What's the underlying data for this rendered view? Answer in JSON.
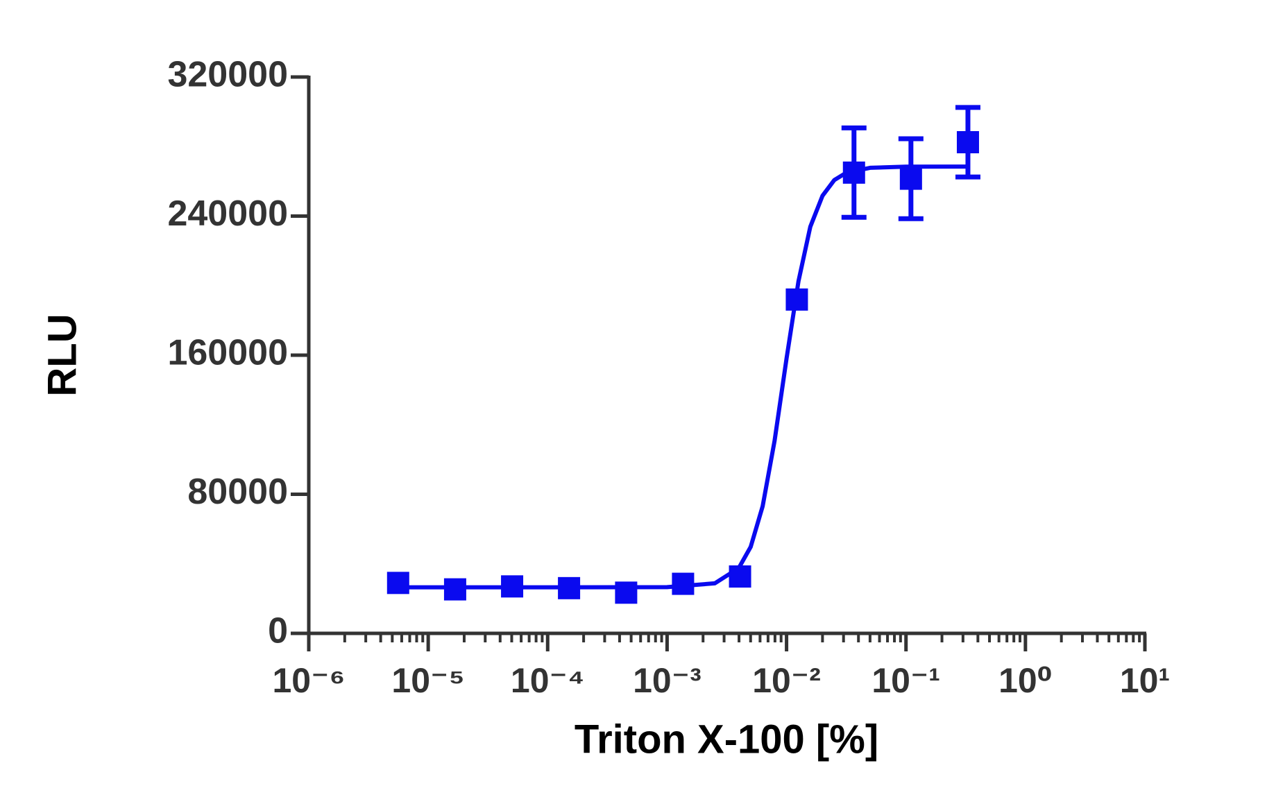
{
  "chart_data": {
    "type": "scatter",
    "x_label": "Triton X-100 [%]",
    "y_label": "RLU",
    "x_scale": "log",
    "xlim": [
      1e-06,
      10
    ],
    "xticks": [
      {
        "value": 1e-06,
        "label": "10⁻⁶"
      },
      {
        "value": 1e-05,
        "label": "10⁻⁵"
      },
      {
        "value": 0.0001,
        "label": "10⁻⁴"
      },
      {
        "value": 0.001,
        "label": "10⁻³"
      },
      {
        "value": 0.01,
        "label": "10⁻²"
      },
      {
        "value": 0.1,
        "label": "10⁻¹"
      },
      {
        "value": 1,
        "label": "10⁰"
      },
      {
        "value": 10,
        "label": "10¹"
      }
    ],
    "ylim": [
      0,
      320000
    ],
    "yticks": [
      0,
      80000,
      160000,
      240000,
      320000
    ],
    "grid": false,
    "series": [
      {
        "color": "#0a0aef",
        "x": [
          5.6e-06,
          1.68e-05,
          5.04e-05,
          0.000151,
          0.000454,
          0.00136,
          0.00408,
          0.0122,
          0.0367,
          0.11,
          0.33
        ],
        "values": [
          29000,
          25300,
          27000,
          26000,
          23400,
          28500,
          32700,
          192000,
          265000,
          261500,
          282500
        ],
        "errors": [
          null,
          null,
          null,
          null,
          null,
          null,
          null,
          null,
          25700,
          23000,
          20000
        ]
      }
    ],
    "fit": {
      "color": "#0a0aef",
      "x": [
        5.6e-06,
        0.0001,
        0.001,
        0.00251,
        0.00398,
        0.00501,
        0.00631,
        0.00794,
        0.01,
        0.0126,
        0.0158,
        0.02,
        0.0251,
        0.0316,
        0.0501,
        0.1,
        0.33
      ],
      "values": [
        26500,
        26500,
        26590,
        28780,
        37550,
        49770,
        73040,
        110670,
        158160,
        202630,
        233870,
        251700,
        260700,
        264950,
        267780,
        268400,
        268500
      ]
    }
  }
}
